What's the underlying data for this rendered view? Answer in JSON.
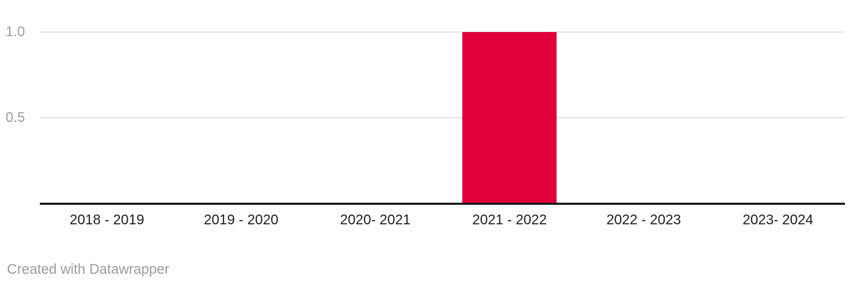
{
  "chart_data": {
    "type": "bar",
    "title": "",
    "xlabel": "",
    "ylabel": "",
    "categories": [
      "2018 - 2019",
      "2019 - 2020",
      "2020- 2021",
      "2021 - 2022",
      "2022 - 2023",
      "2023- 2024"
    ],
    "values": [
      0,
      0,
      0,
      1.0,
      0,
      0
    ],
    "ylim": [
      0,
      1.0
    ],
    "yticks": [
      0.5,
      1.0
    ],
    "ytick_labels": [
      "0.5",
      "1.0"
    ],
    "grid": true,
    "legend": false,
    "bar_color": "#e2003c"
  },
  "colors": {
    "background": "#ffffff",
    "bar": "#e2003c",
    "grid": "#e8e8e8",
    "axis": "#1a1a1a",
    "x_label": "#1d1d1d",
    "y_label": "#9d9d9d",
    "attribution": "#9b9b9b"
  },
  "attribution": {
    "text": "Created with Datawrapper"
  }
}
